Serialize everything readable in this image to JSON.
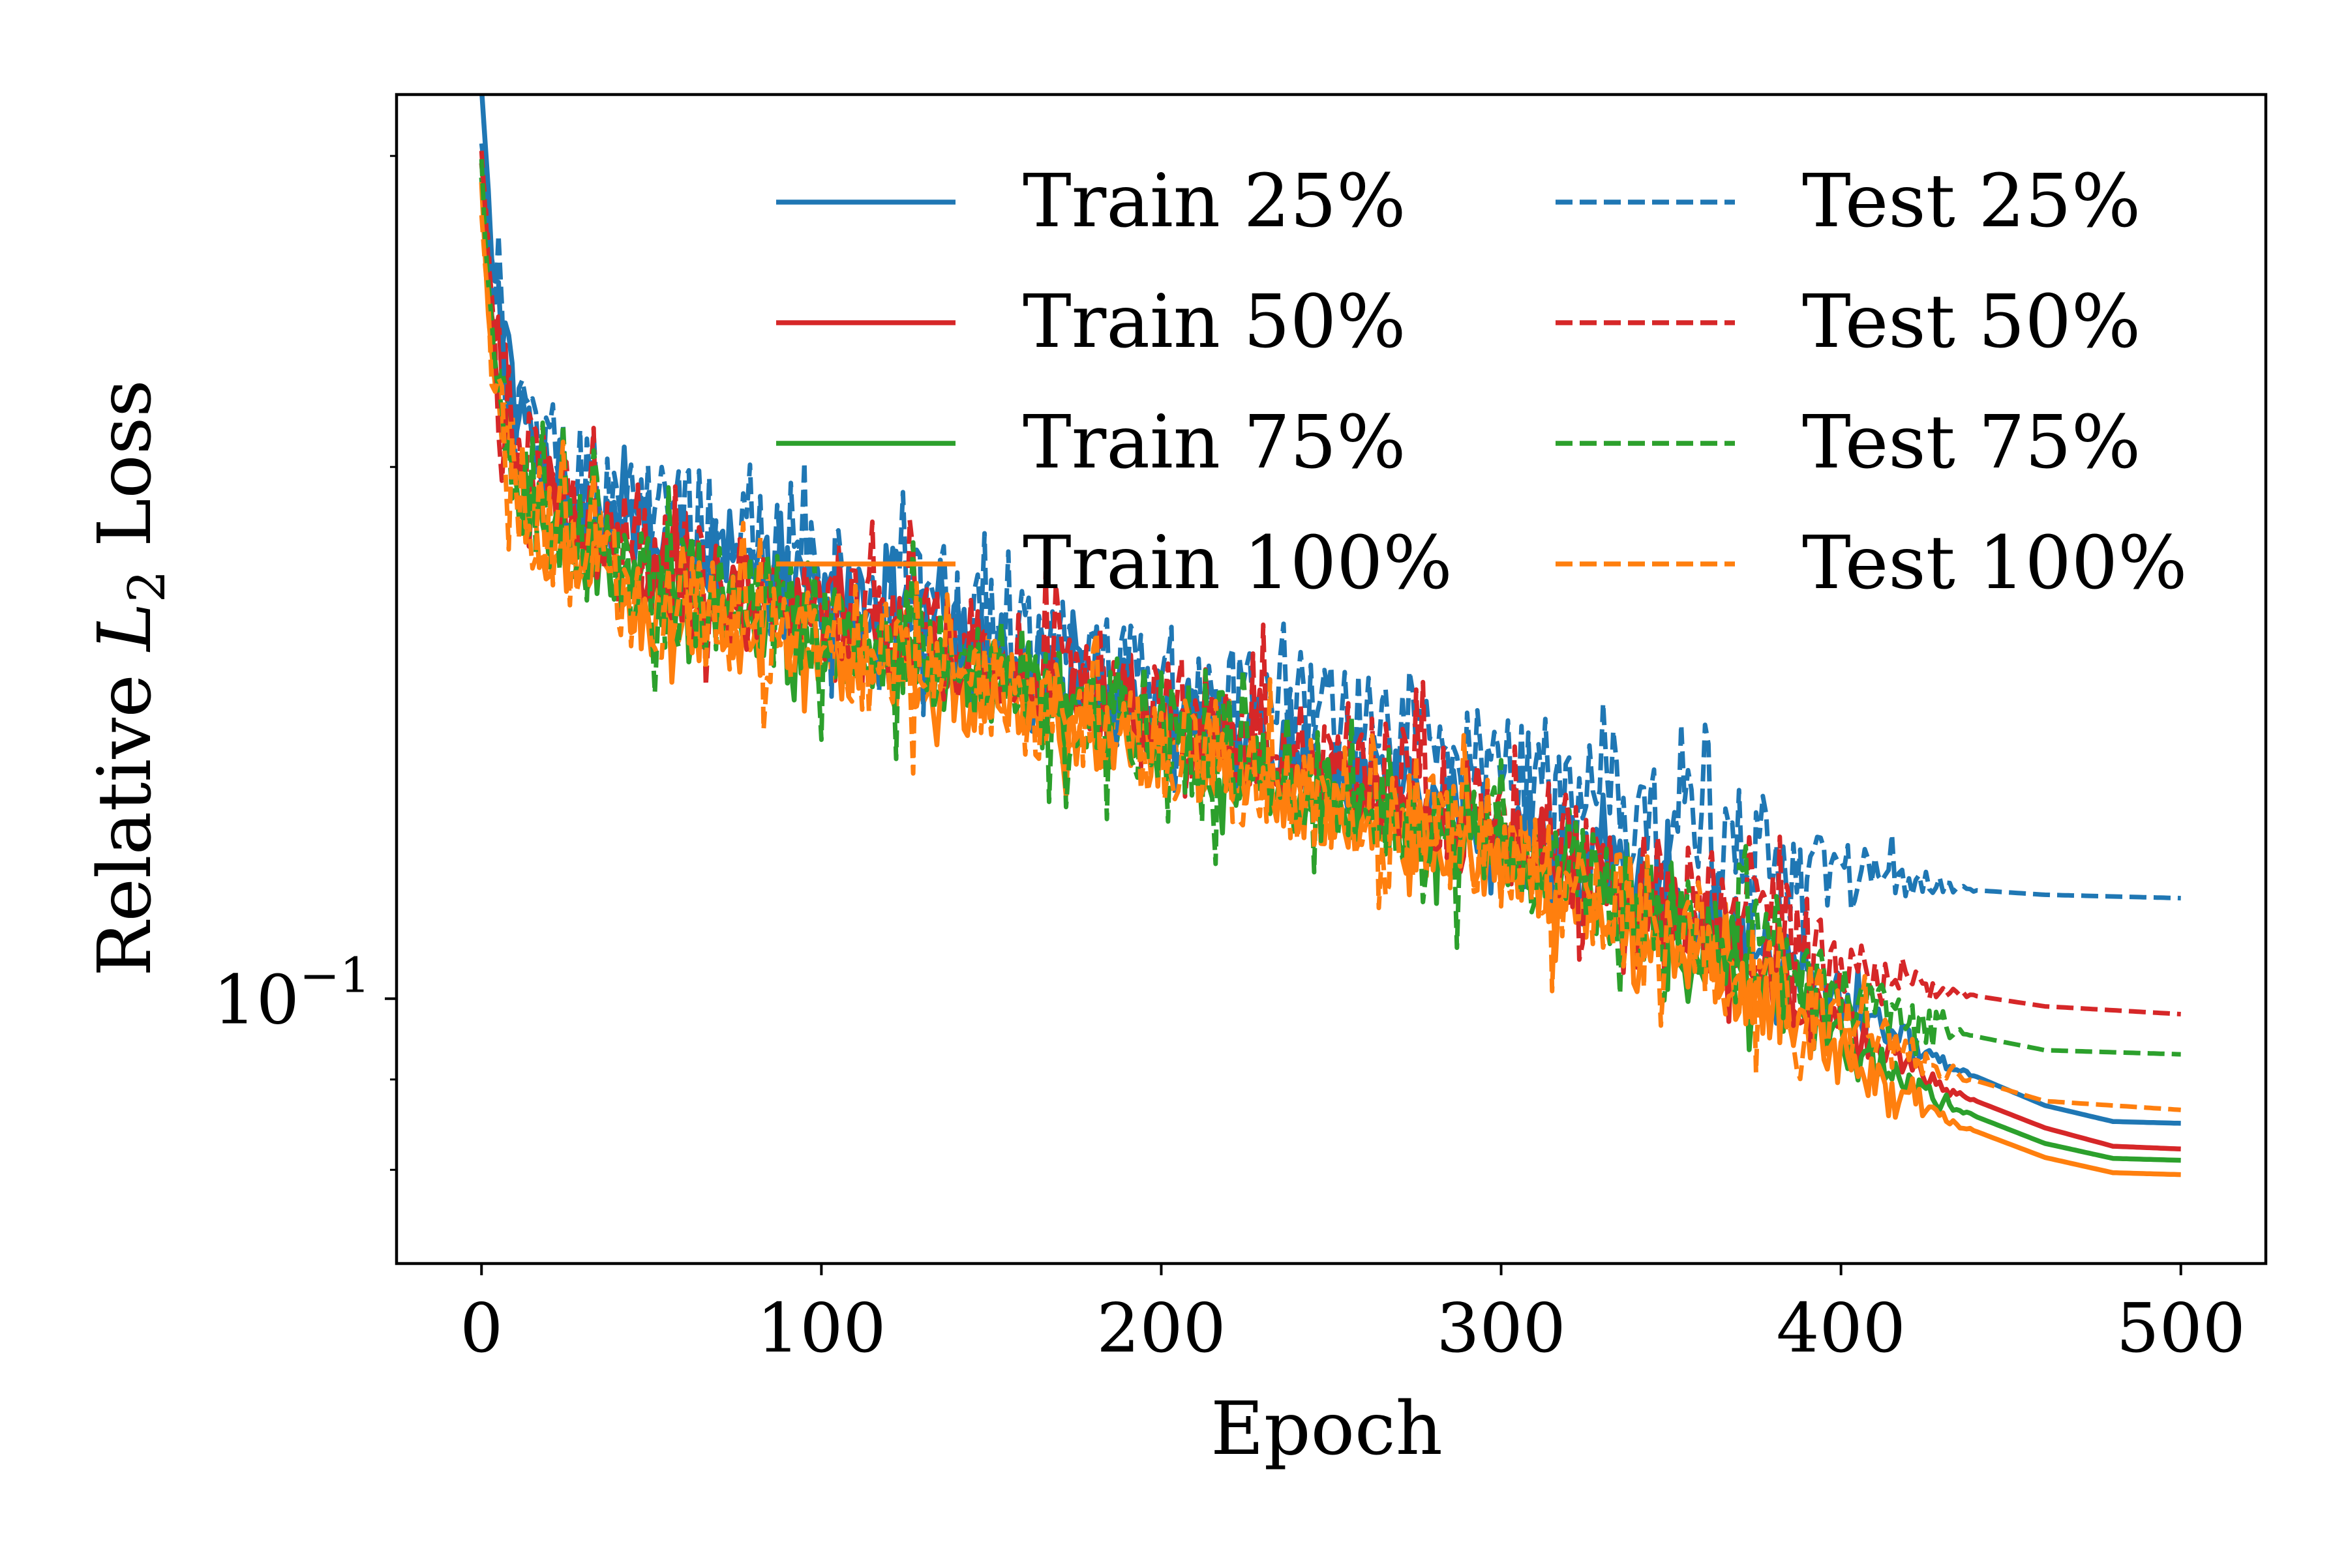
{
  "chart_data": {
    "type": "line",
    "xlabel": "Epoch",
    "ylabel_text": "Relative ",
    "ylabel_math": "L",
    "ylabel_sub": "2",
    "ylabel_tail": " Loss",
    "y_scale": "log",
    "xlim": [
      -25,
      525
    ],
    "ylim": [
      0.0708,
      0.325
    ],
    "x_ticks": [
      0,
      100,
      200,
      300,
      400,
      500
    ],
    "x_tick_labels": [
      "0",
      "100",
      "200",
      "300",
      "400",
      "500"
    ],
    "y_major_tick": {
      "value": 0.1,
      "base": "10",
      "exponent": "−1"
    },
    "y_minor_ticks": [
      0.08,
      0.09,
      0.2,
      0.3
    ],
    "legend_position": "top-right",
    "legend_columns": 2,
    "series": [
      {
        "name": "Train 25%",
        "color": "#1f77b4",
        "dash": "solid",
        "points": [
          [
            0,
            0.325
          ],
          [
            3,
            0.265
          ],
          [
            10,
            0.215
          ],
          [
            25,
            0.195
          ],
          [
            50,
            0.182
          ],
          [
            100,
            0.17
          ],
          [
            150,
            0.158
          ],
          [
            200,
            0.146
          ],
          [
            250,
            0.135
          ],
          [
            300,
            0.125
          ],
          [
            350,
            0.114
          ],
          [
            400,
            0.1
          ],
          [
            430,
            0.092
          ],
          [
            460,
            0.087
          ],
          [
            480,
            0.0852
          ],
          [
            500,
            0.085
          ]
        ]
      },
      {
        "name": "Train 50%",
        "color": "#d62728",
        "dash": "solid",
        "points": [
          [
            0,
            0.302
          ],
          [
            3,
            0.245
          ],
          [
            10,
            0.202
          ],
          [
            25,
            0.186
          ],
          [
            50,
            0.175
          ],
          [
            100,
            0.165
          ],
          [
            150,
            0.154
          ],
          [
            200,
            0.143
          ],
          [
            250,
            0.133
          ],
          [
            300,
            0.123
          ],
          [
            350,
            0.112
          ],
          [
            400,
            0.097
          ],
          [
            430,
            0.089
          ],
          [
            460,
            0.0845
          ],
          [
            480,
            0.0825
          ],
          [
            500,
            0.0822
          ]
        ]
      },
      {
        "name": "Train 75%",
        "color": "#2ca02c",
        "dash": "solid",
        "points": [
          [
            0,
            0.292
          ],
          [
            3,
            0.238
          ],
          [
            10,
            0.196
          ],
          [
            25,
            0.181
          ],
          [
            50,
            0.17
          ],
          [
            100,
            0.16
          ],
          [
            150,
            0.15
          ],
          [
            200,
            0.14
          ],
          [
            250,
            0.13
          ],
          [
            300,
            0.121
          ],
          [
            350,
            0.11
          ],
          [
            400,
            0.095
          ],
          [
            430,
            0.0872
          ],
          [
            460,
            0.0828
          ],
          [
            480,
            0.0812
          ],
          [
            500,
            0.081
          ]
        ]
      },
      {
        "name": "Train 100%",
        "color": "#ff7f0e",
        "dash": "solid",
        "points": [
          [
            0,
            0.282
          ],
          [
            3,
            0.231
          ],
          [
            10,
            0.19
          ],
          [
            25,
            0.176
          ],
          [
            50,
            0.166
          ],
          [
            100,
            0.156
          ],
          [
            150,
            0.147
          ],
          [
            200,
            0.138
          ],
          [
            250,
            0.128
          ],
          [
            300,
            0.119
          ],
          [
            350,
            0.108
          ],
          [
            400,
            0.093
          ],
          [
            430,
            0.0855
          ],
          [
            460,
            0.0813
          ],
          [
            480,
            0.0797
          ],
          [
            500,
            0.0795
          ]
        ]
      },
      {
        "name": "Test 25%",
        "color": "#1f77b4",
        "dash": "dashed",
        "points": [
          [
            0,
            0.31
          ],
          [
            3,
            0.255
          ],
          [
            10,
            0.215
          ],
          [
            25,
            0.197
          ],
          [
            50,
            0.19
          ],
          [
            100,
            0.172
          ],
          [
            150,
            0.163
          ],
          [
            200,
            0.152
          ],
          [
            250,
            0.144
          ],
          [
            300,
            0.134
          ],
          [
            350,
            0.126
          ],
          [
            400,
            0.118
          ],
          [
            430,
            0.1155
          ],
          [
            460,
            0.1145
          ],
          [
            500,
            0.114
          ]
        ]
      },
      {
        "name": "Test 50%",
        "color": "#d62728",
        "dash": "dashed",
        "points": [
          [
            0,
            0.3
          ],
          [
            3,
            0.245
          ],
          [
            10,
            0.205
          ],
          [
            25,
            0.188
          ],
          [
            50,
            0.175
          ],
          [
            100,
            0.165
          ],
          [
            150,
            0.156
          ],
          [
            200,
            0.146
          ],
          [
            250,
            0.136
          ],
          [
            300,
            0.126
          ],
          [
            350,
            0.115
          ],
          [
            400,
            0.105
          ],
          [
            430,
            0.101
          ],
          [
            460,
            0.099
          ],
          [
            500,
            0.098
          ]
        ]
      },
      {
        "name": "Test 75%",
        "color": "#2ca02c",
        "dash": "dashed",
        "points": [
          [
            0,
            0.29
          ],
          [
            3,
            0.235
          ],
          [
            10,
            0.198
          ],
          [
            25,
            0.183
          ],
          [
            50,
            0.172
          ],
          [
            100,
            0.163
          ],
          [
            150,
            0.153
          ],
          [
            200,
            0.142
          ],
          [
            250,
            0.132
          ],
          [
            300,
            0.122
          ],
          [
            350,
            0.111
          ],
          [
            400,
            0.1
          ],
          [
            430,
            0.096
          ],
          [
            460,
            0.0935
          ],
          [
            500,
            0.093
          ]
        ]
      },
      {
        "name": "Test 100%",
        "color": "#ff7f0e",
        "dash": "dashed",
        "points": [
          [
            0,
            0.28
          ],
          [
            3,
            0.228
          ],
          [
            10,
            0.192
          ],
          [
            25,
            0.178
          ],
          [
            50,
            0.168
          ],
          [
            100,
            0.159
          ],
          [
            150,
            0.15
          ],
          [
            200,
            0.14
          ],
          [
            250,
            0.13
          ],
          [
            300,
            0.12
          ],
          [
            350,
            0.109
          ],
          [
            400,
            0.097
          ],
          [
            430,
            0.091
          ],
          [
            460,
            0.0875
          ],
          [
            500,
            0.0865
          ]
        ]
      }
    ]
  }
}
